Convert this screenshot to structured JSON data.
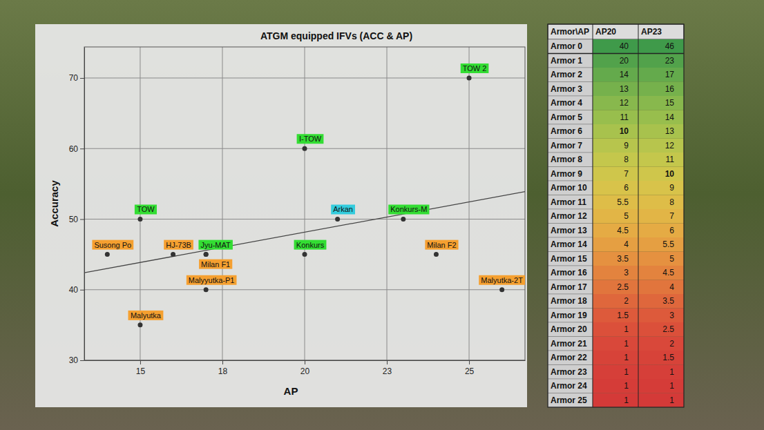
{
  "chart_data": {
    "type": "scatter",
    "title": "ATGM equipped IFVs (ACC & AP)",
    "x_label": "AP",
    "y_label": "Accuracy",
    "labels": [
      "TOW 2",
      "I-TOW",
      "TOW",
      "Arkan",
      "Konkurs-M",
      "Susong Po",
      "HJ-73B",
      "Jyu-MAT",
      "Milan F1",
      "Konkurs",
      "Milan F2",
      "Malyyutka-P1",
      "Malyutka-2T",
      "Malyutka"
    ],
    "x": [
      25,
      20,
      15,
      21,
      23,
      14,
      16,
      17,
      17,
      20,
      24,
      17,
      26,
      15
    ],
    "values": [
      70,
      60,
      50,
      50,
      50,
      45,
      45,
      45,
      45,
      45,
      45,
      40,
      40,
      35
    ],
    "colors": [
      "#33dd33",
      "#33dd33",
      "#33dd33",
      "#33ccdd",
      "#33dd33",
      "#f5a030",
      "#f5a030",
      "#33dd33",
      "#f5a030",
      "#33dd33",
      "#f5a030",
      "#f5a030",
      "#f5a030",
      "#f5a030"
    ],
    "trendline": {
      "x": [
        13.3,
        26.7
      ],
      "values": [
        42.4,
        53.9
      ]
    },
    "xlim": [
      13.3,
      26.7
    ],
    "xticks": [
      15,
      {
        "value": 17.5,
        "label": "18"
      },
      20,
      {
        "value": 22.5,
        "label": "23"
      },
      25
    ],
    "ylim": [
      30,
      74.4
    ],
    "yticks": [
      30,
      40,
      50,
      60,
      70
    ],
    "grid": true
  },
  "table": {
    "header": [
      "Armor\\AP",
      "AP20",
      "AP23"
    ],
    "rows": [
      [
        "Armor 0",
        40,
        46
      ],
      [
        "Armor 1",
        20,
        23
      ],
      [
        "Armor 2",
        14,
        17
      ],
      [
        "Armor 3",
        13,
        16
      ],
      [
        "Armor 4",
        12,
        15
      ],
      [
        "Armor 5",
        11,
        14
      ],
      [
        "Armor 6",
        10,
        13
      ],
      [
        "Armor 7",
        9,
        12
      ],
      [
        "Armor 8",
        8,
        11
      ],
      [
        "Armor 9",
        7,
        10
      ],
      [
        "Armor 10",
        6,
        9
      ],
      [
        "Armor 11",
        5.5,
        8
      ],
      [
        "Armor 12",
        5,
        7
      ],
      [
        "Armor 13",
        4.5,
        6
      ],
      [
        "Armor 14",
        4,
        5.5
      ],
      [
        "Armor 15",
        3.5,
        5
      ],
      [
        "Armor 16",
        3,
        4.5
      ],
      [
        "Armor 17",
        2.5,
        4
      ],
      [
        "Armor 18",
        2,
        3.5
      ],
      [
        "Armor 19",
        1.5,
        3
      ],
      [
        "Armor 20",
        1,
        2.5
      ],
      [
        "Armor 21",
        1,
        2
      ],
      [
        "Armor 22",
        1,
        1.5
      ],
      [
        "Armor 23",
        1,
        1
      ],
      [
        "Armor 24",
        1,
        1
      ],
      [
        "Armor 25",
        1,
        1
      ]
    ]
  }
}
